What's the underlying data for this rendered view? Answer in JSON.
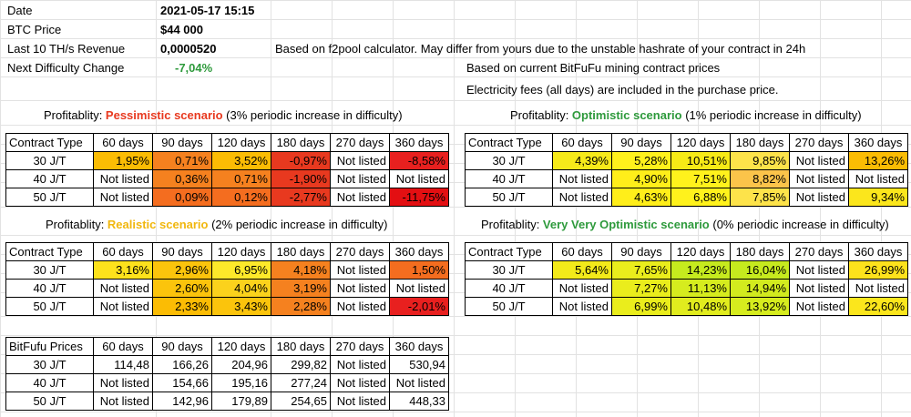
{
  "info": {
    "date_label": "Date",
    "date_value": "2021-05-17 15:15",
    "btc_label": "BTC Price",
    "btc_value": "$44 000",
    "revenue_label": "Last 10 TH/s Revenue",
    "revenue_value": "0,0000520",
    "revenue_note": "Based on f2pool calculator. May differ from yours due to the unstable hashrate of your contract in 24h",
    "difficulty_label": "Next Difficulty Change",
    "difficulty_value": "-7,04%",
    "contract_note": "Based on current BitFuFu mining contract prices",
    "electricity_note": "Electricity fees (all days) are included in the purchase price."
  },
  "headers": [
    "Contract Type",
    "60 days",
    "90 days",
    "120 days",
    "180 days",
    "270 days",
    "360 days"
  ],
  "prices_header": [
    "BitFufu Prices",
    "60 days",
    "90 days",
    "120 days",
    "180 days",
    "270 days",
    "360 days"
  ],
  "row_labels": [
    "30 J/T",
    "40 J/T",
    "50 J/T"
  ],
  "scenarios": {
    "pessimistic": {
      "prefix": "Profitablity: ",
      "name": "Pessimistic scenario",
      "suffix": " (3% periodic increase in difficulty)",
      "rows": [
        [
          "1,95%",
          "0,71%",
          "3,52%",
          "-0,97%",
          "Not listed",
          "-8,58%"
        ],
        [
          "Not listed",
          "0,36%",
          "0,71%",
          "-1,90%",
          "Not listed",
          "Not listed"
        ],
        [
          "Not listed",
          "0,09%",
          "0,12%",
          "-2,77%",
          "Not listed",
          "-11,75%"
        ]
      ],
      "colors": [
        [
          "#fbbc04",
          "#f5811f",
          "#fbbc04",
          "#e8391f",
          "",
          "#e8201f"
        ],
        [
          "",
          "#f5811f",
          "#f5811f",
          "#e8391f",
          "",
          ""
        ],
        [
          "",
          "#f46d1f",
          "#f46d1f",
          "#e8391f",
          "",
          "#e30f12"
        ]
      ]
    },
    "optimistic": {
      "prefix": "Profitablity: ",
      "name": "Optimistic scenario",
      "suffix": " (1% periodic increase in difficulty)",
      "rows": [
        [
          "4,39%",
          "5,28%",
          "10,51%",
          "9,85%",
          "Not listed",
          "13,26%"
        ],
        [
          "Not listed",
          "4,90%",
          "7,51%",
          "8,82%",
          "Not listed",
          "Not listed"
        ],
        [
          "Not listed",
          "4,63%",
          "6,88%",
          "7,85%",
          "Not listed",
          "9,34%"
        ]
      ],
      "colors": [
        [
          "#f6ea1a",
          "#fff11c",
          "#f7ea16",
          "#fde34a",
          "",
          "#fbbc04"
        ],
        [
          "",
          "#ffee1a",
          "#fff21c",
          "#fbc44a",
          "",
          ""
        ],
        [
          "",
          "#ffee1a",
          "#fff21c",
          "#fde34a",
          "",
          "#fbe61c"
        ]
      ]
    },
    "realistic": {
      "prefix": "Profitablity: ",
      "name": "Realistic scenario",
      "suffix": " (2% periodic increase in difficulty)",
      "rows": [
        [
          "3,16%",
          "2,96%",
          "6,95%",
          "4,18%",
          "Not listed",
          "1,50%"
        ],
        [
          "Not listed",
          "2,60%",
          "4,04%",
          "3,19%",
          "Not listed",
          "Not listed"
        ],
        [
          "Not listed",
          "2,33%",
          "3,43%",
          "2,28%",
          "Not listed",
          "-2,01%"
        ]
      ],
      "colors": [
        [
          "#fde21c",
          "#fbc40c",
          "#fde92a",
          "#f5811f",
          "",
          "#f46d1f"
        ],
        [
          "",
          "#fbc40c",
          "#fbd21c",
          "#f5811f",
          "",
          ""
        ],
        [
          "",
          "#fbbc04",
          "#fbc40c",
          "#f5811f",
          "",
          "#e8201f"
        ]
      ]
    },
    "very_very_optimistic": {
      "prefix": "Profitablity: ",
      "name": "Very Very Optimistic scenario",
      "suffix": " (0% periodic increase in difficulty)",
      "rows": [
        [
          "5,64%",
          "7,65%",
          "14,23%",
          "16,04%",
          "Not listed",
          "26,99%"
        ],
        [
          "Not listed",
          "7,27%",
          "11,13%",
          "14,94%",
          "Not listed",
          "Not listed"
        ],
        [
          "Not listed",
          "6,99%",
          "10,48%",
          "13,92%",
          "Not listed",
          "22,60%"
        ]
      ],
      "colors": [
        [
          "#f3ea1a",
          "#eaed1c",
          "#c6ea1e",
          "#c6ea1e",
          "",
          "#fde21c"
        ],
        [
          "",
          "#eaed1c",
          "#d6ec1e",
          "#d2eb1e",
          "",
          ""
        ],
        [
          "",
          "#eaed1c",
          "#e1ec1e",
          "#d6ec1e",
          "",
          "#fbe61c"
        ]
      ]
    }
  },
  "prices": {
    "rows": [
      [
        "114,48",
        "166,26",
        "204,96",
        "299,82",
        "Not listed",
        "530,94"
      ],
      [
        "Not listed",
        "154,66",
        "195,16",
        "277,24",
        "Not listed",
        "Not listed"
      ],
      [
        "Not listed",
        "142,96",
        "179,89",
        "254,65",
        "Not listed",
        "448,33"
      ]
    ]
  }
}
